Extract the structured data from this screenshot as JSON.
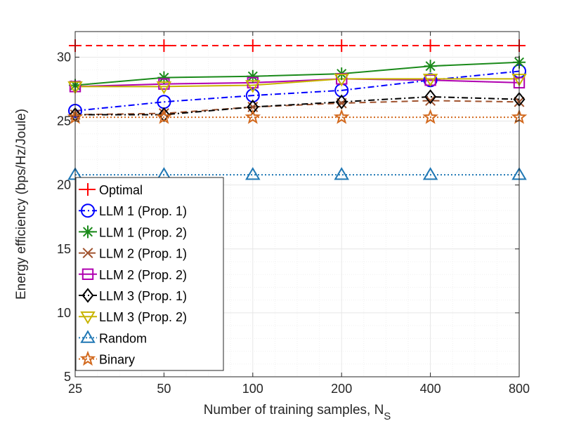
{
  "chart_data": {
    "type": "line",
    "xlabel": "Number of training samples, N",
    "xlabel_sub": "S",
    "ylabel": "Energy efficiency (bps/Hz/Joule)",
    "categories": [
      "25",
      "50",
      "100",
      "200",
      "400",
      "800"
    ],
    "ylim": [
      5,
      32
    ],
    "yticks": [
      5,
      10,
      15,
      20,
      25,
      30
    ],
    "grid": true,
    "legend_position": "bottom-left",
    "series": [
      {
        "name": "Optimal",
        "values": [
          30.9,
          30.9,
          30.9,
          30.9,
          30.9,
          30.9
        ],
        "color": "#ff0000",
        "dash": "dashed",
        "marker": "plus"
      },
      {
        "name": "LLM 1 (Prop. 1)",
        "values": [
          25.8,
          26.5,
          27.0,
          27.4,
          28.2,
          28.9
        ],
        "color": "#0000ff",
        "dash": "dashdot",
        "marker": "circle"
      },
      {
        "name": "LLM 1 (Prop. 2)",
        "values": [
          27.8,
          28.4,
          28.5,
          28.7,
          29.3,
          29.6
        ],
        "color": "#1a8a1a",
        "dash": "solid",
        "marker": "asterisk"
      },
      {
        "name": "LLM 2 (Prop. 1)",
        "values": [
          25.5,
          25.6,
          26.1,
          26.4,
          26.6,
          26.5
        ],
        "color": "#a0522d",
        "dash": "dashed",
        "marker": "cross"
      },
      {
        "name": "LLM 2 (Prop. 2)",
        "values": [
          27.7,
          27.9,
          28.0,
          28.3,
          28.2,
          28.0
        ],
        "color": "#b000b0",
        "dash": "solid",
        "marker": "square"
      },
      {
        "name": "LLM 3 (Prop. 1)",
        "values": [
          25.5,
          25.5,
          26.1,
          26.5,
          26.9,
          26.7
        ],
        "color": "#000000",
        "dash": "dashdot",
        "marker": "diamond"
      },
      {
        "name": "LLM 3 (Prop. 2)",
        "values": [
          27.7,
          27.7,
          27.8,
          28.3,
          28.3,
          28.3
        ],
        "color": "#c8b400",
        "dash": "solid",
        "marker": "triangle-down"
      },
      {
        "name": "Random",
        "values": [
          20.8,
          20.8,
          20.8,
          20.8,
          20.8,
          20.8
        ],
        "color": "#1f77b4",
        "dash": "dotted",
        "marker": "triangle-up"
      },
      {
        "name": "Binary",
        "values": [
          25.3,
          25.3,
          25.3,
          25.3,
          25.3,
          25.3
        ],
        "color": "#d2691e",
        "dash": "dotted",
        "marker": "star"
      }
    ]
  }
}
